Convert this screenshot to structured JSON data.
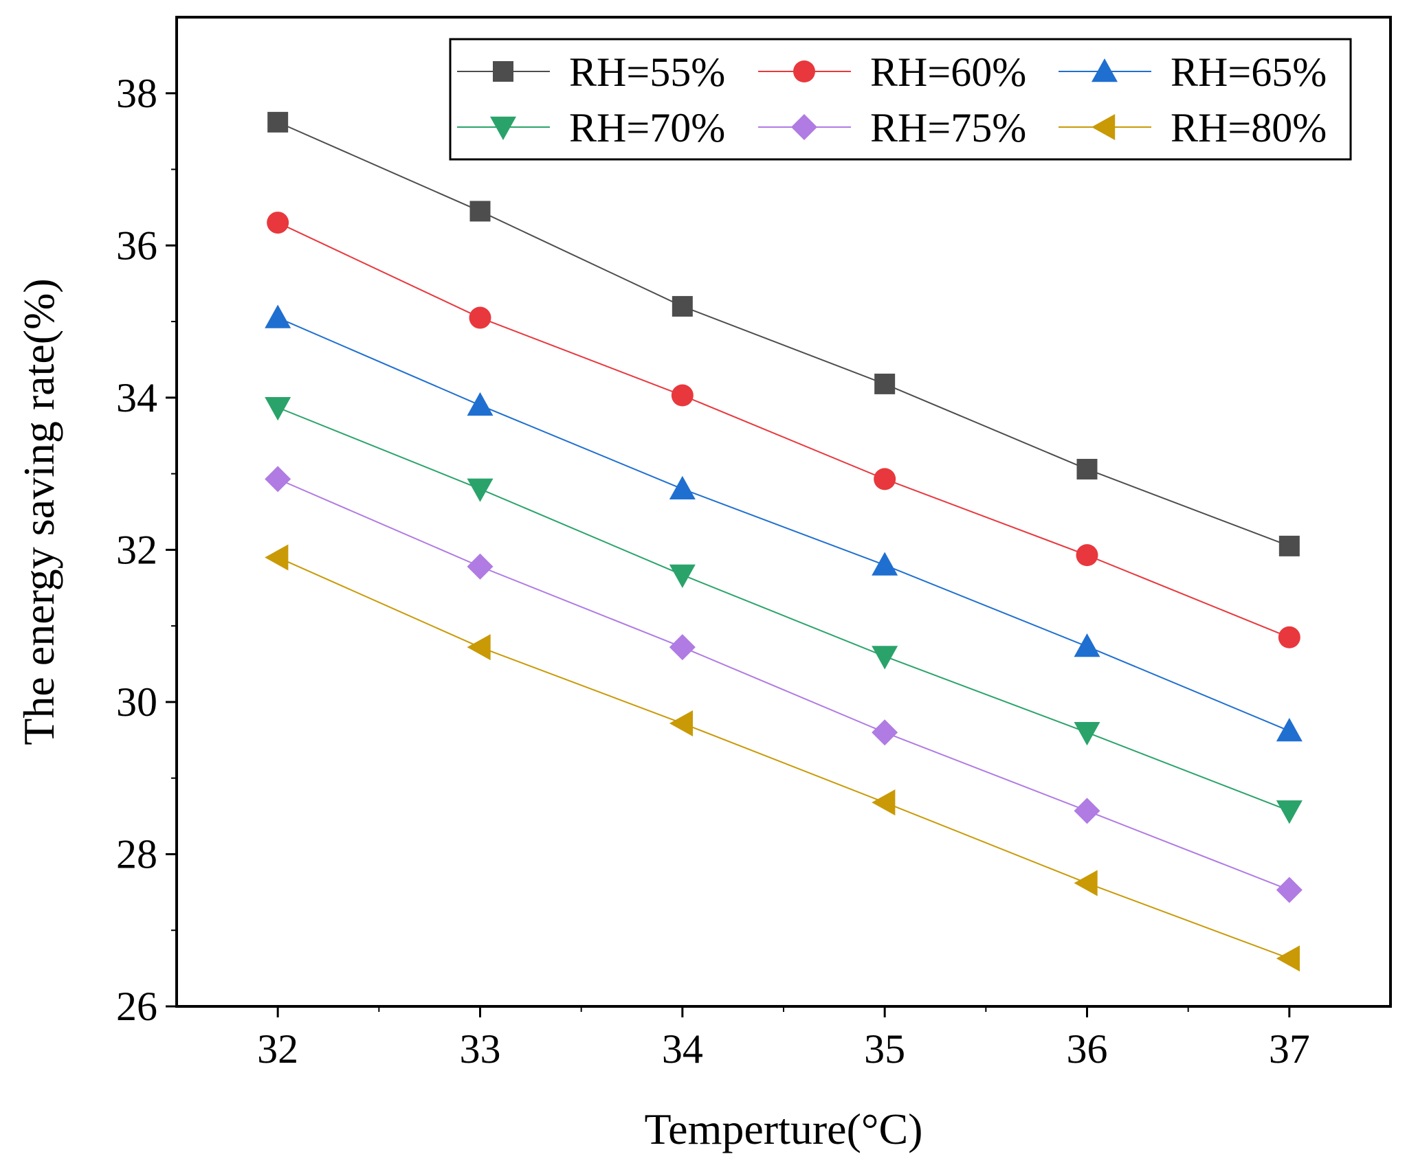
{
  "chart_data": {
    "type": "line",
    "title": "",
    "xlabel": "Temperture(°C)",
    "ylabel": "The energy saving rate(%)",
    "x": [
      32,
      33,
      34,
      35,
      36,
      37
    ],
    "xlim": [
      31.5,
      37.5
    ],
    "ylim": [
      26,
      39
    ],
    "xticks": [
      32,
      33,
      34,
      35,
      36,
      37
    ],
    "yticks": [
      26,
      28,
      30,
      32,
      34,
      36,
      38
    ],
    "grid": false,
    "legend_position": "top-right",
    "series": [
      {
        "name": "RH=55%",
        "color": "#4d4d4d",
        "marker": "square",
        "values": [
          37.62,
          36.45,
          35.2,
          34.18,
          33.06,
          32.05
        ]
      },
      {
        "name": "RH=60%",
        "color": "#e8383d",
        "marker": "circle",
        "values": [
          36.3,
          35.05,
          34.03,
          32.93,
          31.93,
          30.85
        ]
      },
      {
        "name": "RH=65%",
        "color": "#1f6fd0",
        "marker": "triangle-up",
        "values": [
          35.05,
          33.9,
          32.8,
          31.8,
          30.73,
          29.62
        ]
      },
      {
        "name": "RH=70%",
        "color": "#2aa36a",
        "marker": "triangle-down",
        "values": [
          33.87,
          32.8,
          31.67,
          30.6,
          29.6,
          28.57
        ]
      },
      {
        "name": "RH=75%",
        "color": "#b07be3",
        "marker": "diamond",
        "values": [
          32.93,
          31.78,
          30.72,
          29.6,
          28.57,
          27.53
        ]
      },
      {
        "name": "RH=80%",
        "color": "#c99a06",
        "marker": "triangle-left",
        "values": [
          31.9,
          30.72,
          29.72,
          28.68,
          27.62,
          26.63
        ]
      }
    ]
  }
}
